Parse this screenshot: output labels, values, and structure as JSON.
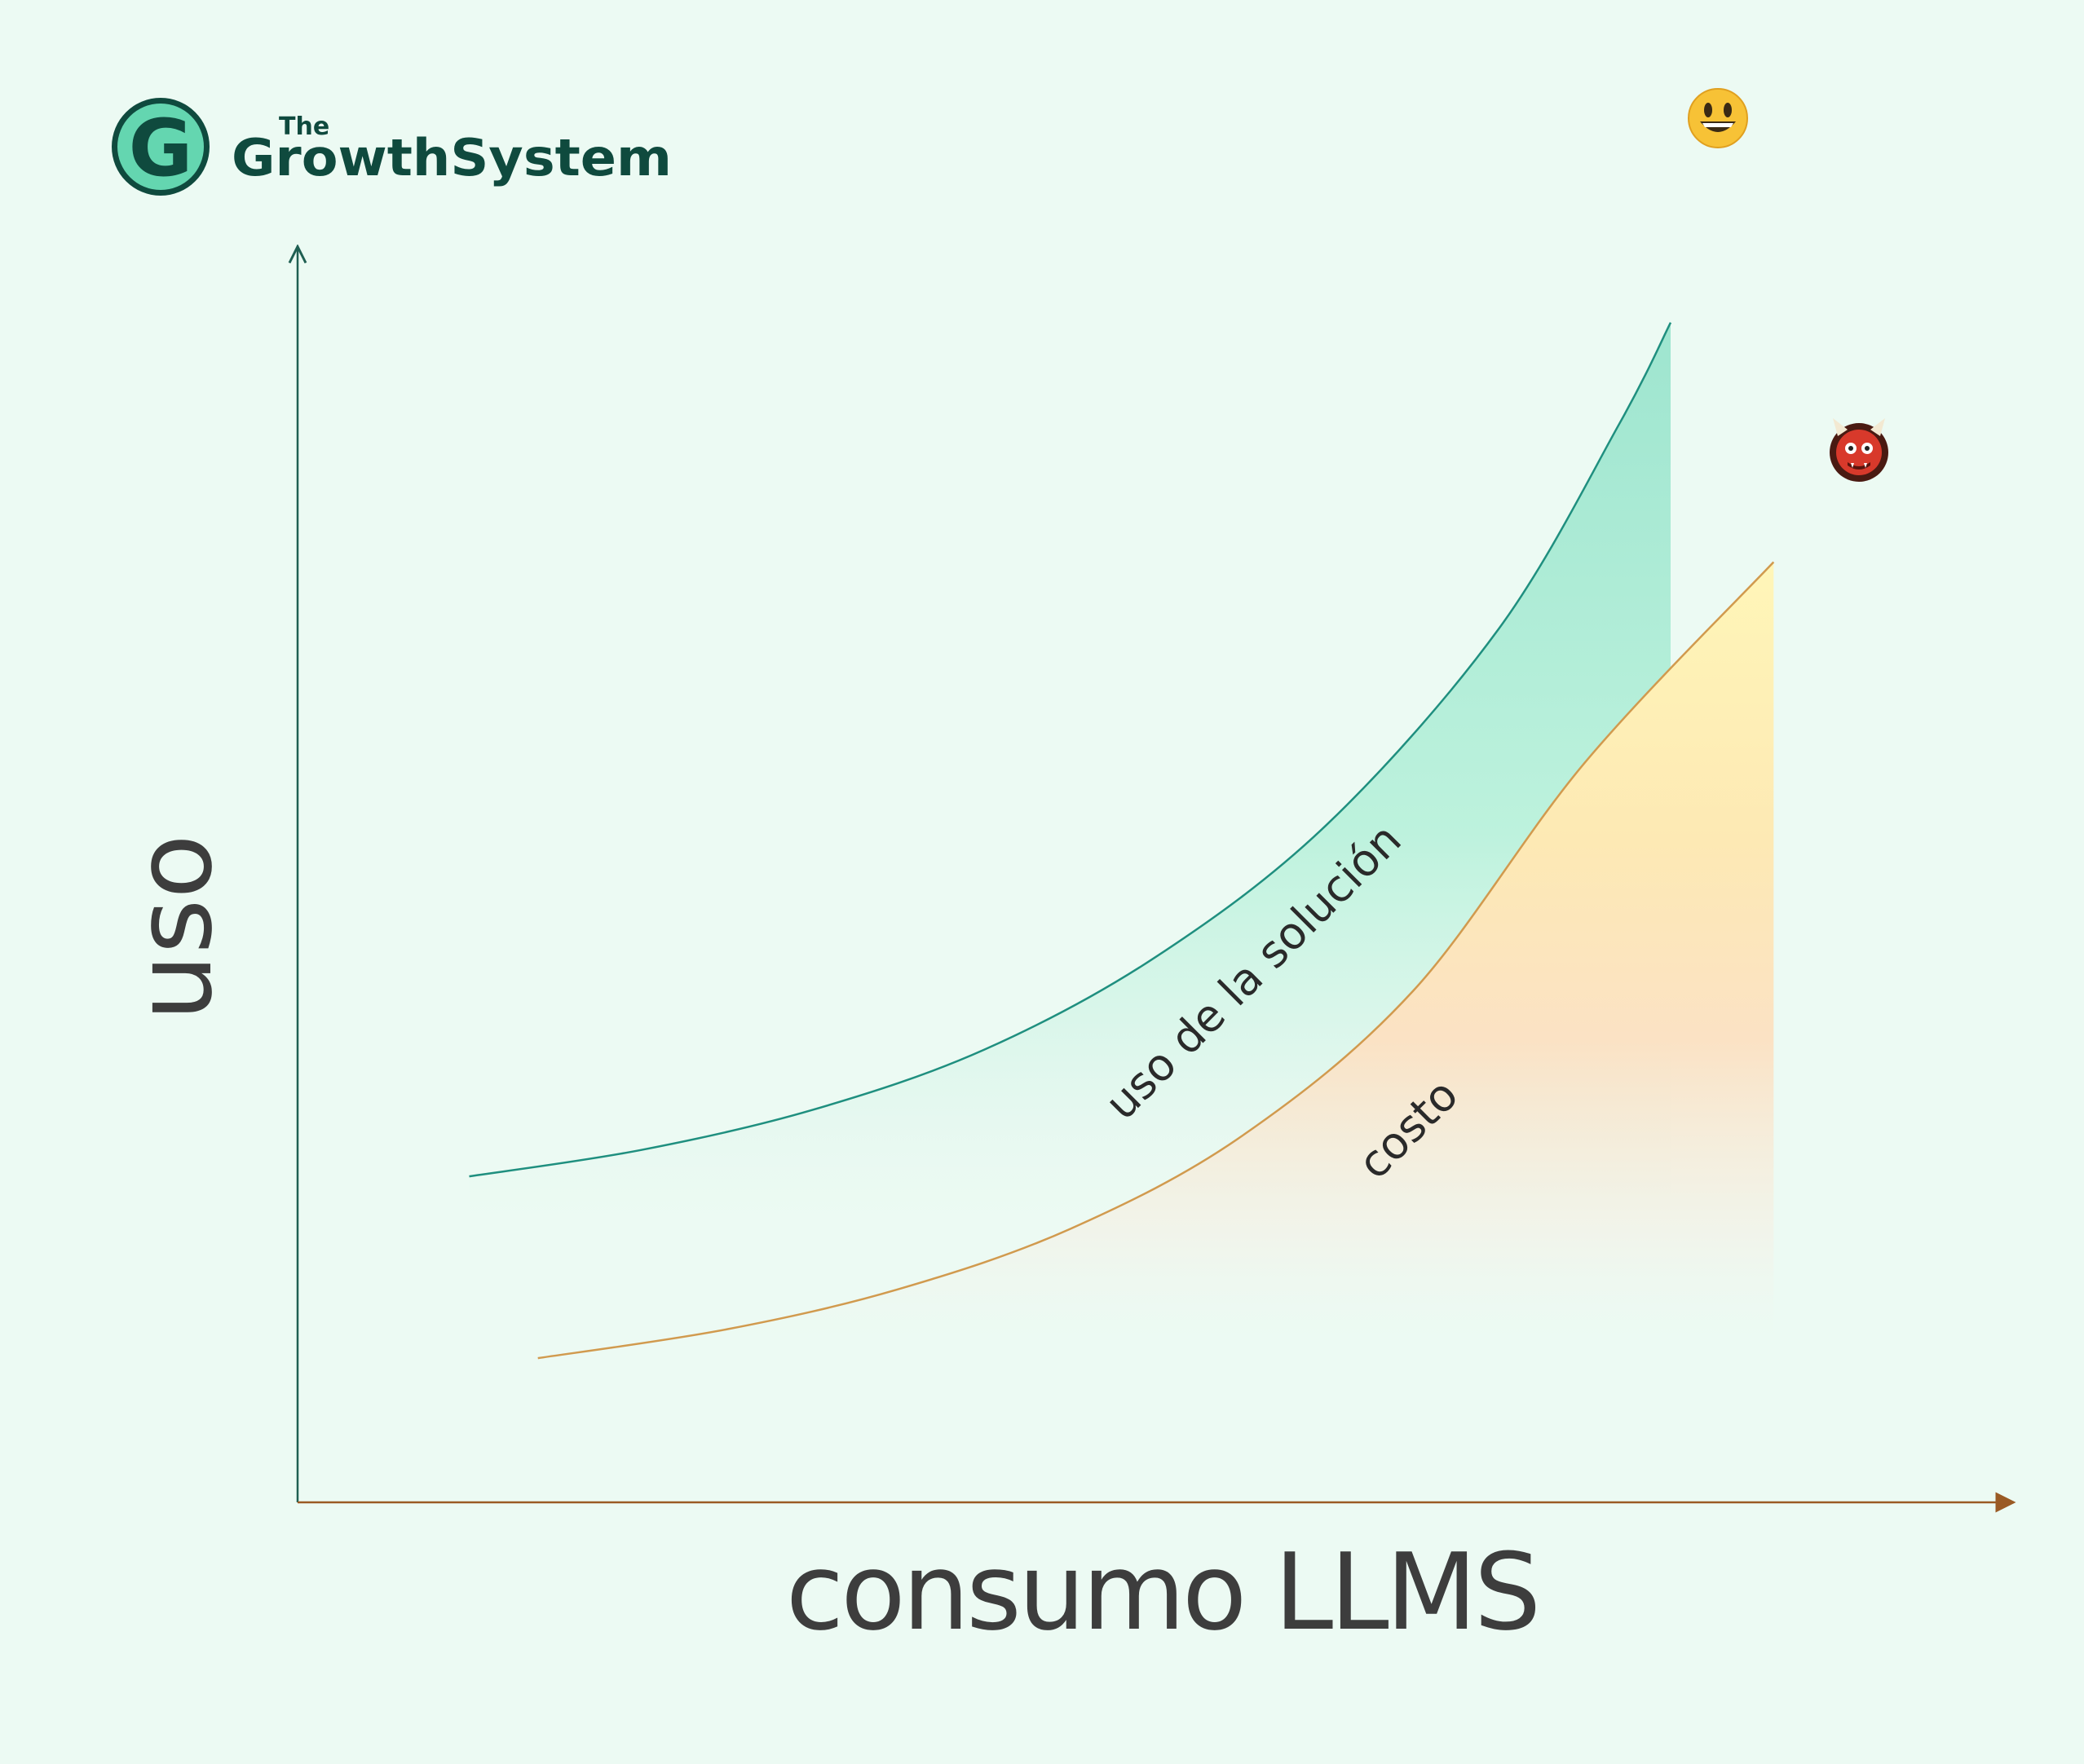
{
  "brand": {
    "logo_letter": "G",
    "logo_small": "The",
    "logo_name": "GrowthSystem",
    "color_dark": "#0f4a3e",
    "color_accent": "#64d6b0"
  },
  "chart_data": {
    "type": "line",
    "title": "",
    "xlabel": "consumo LLMS",
    "ylabel": "uso",
    "grid": false,
    "legend": "none",
    "series": [
      {
        "name": "uso de la solución",
        "color": "#1f8f7f",
        "fill": "#64d6b0",
        "icon": "grinning-face-icon",
        "points": [
          [
            0.1,
            0.26
          ],
          [
            0.2,
            0.281
          ],
          [
            0.3,
            0.313
          ],
          [
            0.4,
            0.361
          ],
          [
            0.5,
            0.435
          ],
          [
            0.6,
            0.541
          ],
          [
            0.7,
            0.697
          ],
          [
            0.77,
            0.86
          ],
          [
            0.8,
            0.941
          ]
        ]
      },
      {
        "name": "costo",
        "color": "#d19a4e",
        "fill": "#ffd07a",
        "icon": "ogre-icon",
        "points": [
          [
            0.14,
            0.115
          ],
          [
            0.25,
            0.138
          ],
          [
            0.35,
            0.17
          ],
          [
            0.45,
            0.218
          ],
          [
            0.55,
            0.292
          ],
          [
            0.65,
            0.408
          ],
          [
            0.75,
            0.59
          ],
          [
            0.86,
            0.75
          ]
        ]
      }
    ]
  }
}
